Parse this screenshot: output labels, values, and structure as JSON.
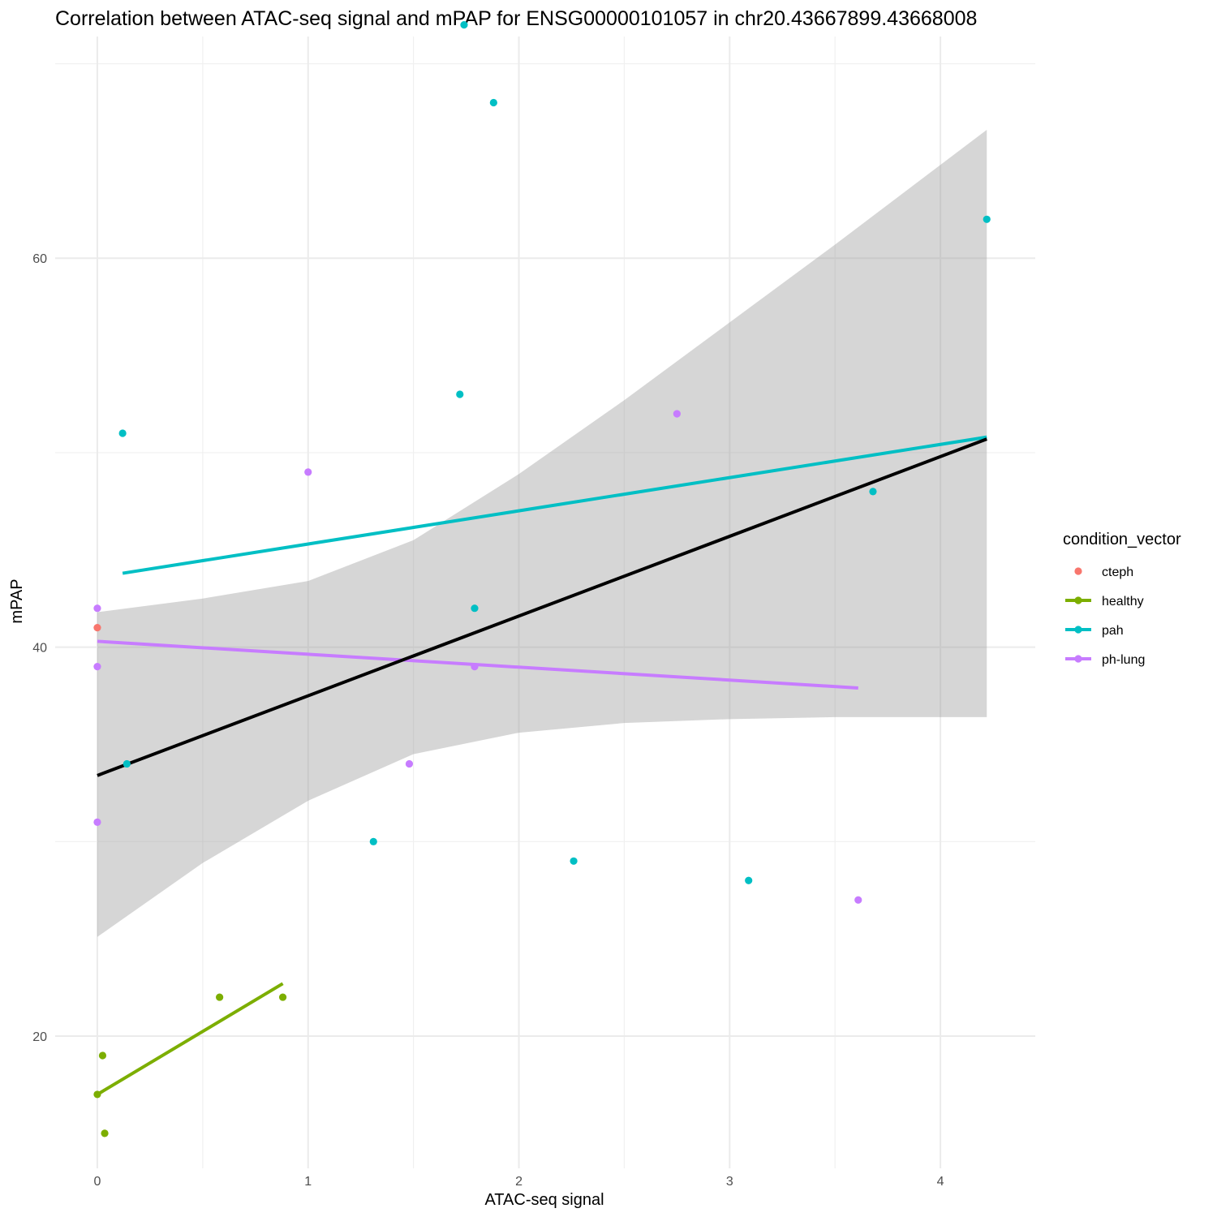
{
  "chart_data": {
    "type": "scatter",
    "title": "Correlation between ATAC-seq signal and mPAP for ENSG00000101057 in chr20.43667899.43668008",
    "xlabel": "ATAC-seq signal",
    "ylabel": "mPAP",
    "xlim": [
      -0.2,
      4.45
    ],
    "ylim": [
      13.2,
      71.4
    ],
    "x_ticks": [
      0,
      1,
      2,
      3,
      4
    ],
    "y_ticks": [
      20,
      40,
      60
    ],
    "grid": true,
    "legend": {
      "title": "condition_vector",
      "position": "right",
      "entries": [
        {
          "label": "cteph",
          "color": "#F8766D",
          "has_line": false
        },
        {
          "label": "healthy",
          "color": "#7CAE00",
          "has_line": true
        },
        {
          "label": "pah",
          "color": "#00BFC4",
          "has_line": true
        },
        {
          "label": "ph-lung",
          "color": "#C77CFF",
          "has_line": true
        }
      ]
    },
    "series": [
      {
        "name": "cteph",
        "color": "#F8766D",
        "points": [
          [
            0.0,
            41.0
          ]
        ]
      },
      {
        "name": "healthy",
        "color": "#7CAE00",
        "points": [
          [
            0.58,
            22.0
          ],
          [
            0.88,
            22.0
          ],
          [
            0.025,
            19.0
          ],
          [
            0.0,
            17.0
          ],
          [
            0.035,
            15.0
          ]
        ]
      },
      {
        "name": "pah",
        "color": "#00BFC4",
        "points": [
          [
            1.74,
            72.0
          ],
          [
            1.88,
            68.0
          ],
          [
            4.22,
            62.0
          ],
          [
            1.72,
            53.0
          ],
          [
            0.12,
            51.0
          ],
          [
            3.68,
            48.0
          ],
          [
            1.79,
            42.0
          ],
          [
            0.14,
            34.0
          ],
          [
            1.31,
            30.0
          ],
          [
            2.26,
            29.0
          ],
          [
            3.09,
            28.0
          ]
        ]
      },
      {
        "name": "ph-lung",
        "color": "#C77CFF",
        "points": [
          [
            2.75,
            52.0
          ],
          [
            1.0,
            49.0
          ],
          [
            0.0,
            42.0
          ],
          [
            0.0,
            39.0
          ],
          [
            1.79,
            39.0
          ],
          [
            1.48,
            34.0
          ],
          [
            0.0,
            31.0
          ],
          [
            3.61,
            27.0
          ]
        ]
      }
    ],
    "fits": [
      {
        "name": "healthy",
        "color": "#7CAE00",
        "x": [
          0.0,
          0.88
        ],
        "y": [
          17.0,
          22.7
        ]
      },
      {
        "name": "pah",
        "color": "#00BFC4",
        "x": [
          0.12,
          4.22
        ],
        "y": [
          43.8,
          50.8
        ]
      },
      {
        "name": "ph-lung",
        "color": "#C77CFF",
        "x": [
          0.0,
          3.61
        ],
        "y": [
          40.3,
          37.9
        ]
      },
      {
        "name": "overall",
        "color": "#000000",
        "x": [
          0.0,
          4.22
        ],
        "y": [
          33.4,
          50.7
        ]
      }
    ],
    "confidence_band": {
      "color": "#999999",
      "x": [
        0.0,
        0.5,
        1.0,
        1.5,
        2.0,
        2.5,
        3.0,
        3.5,
        4.22
      ],
      "lower": [
        25.1,
        28.9,
        32.1,
        34.5,
        35.6,
        36.1,
        36.3,
        36.4,
        36.4
      ],
      "upper": [
        41.8,
        42.5,
        43.4,
        45.5,
        48.9,
        52.7,
        56.7,
        60.7,
        66.6
      ]
    }
  }
}
